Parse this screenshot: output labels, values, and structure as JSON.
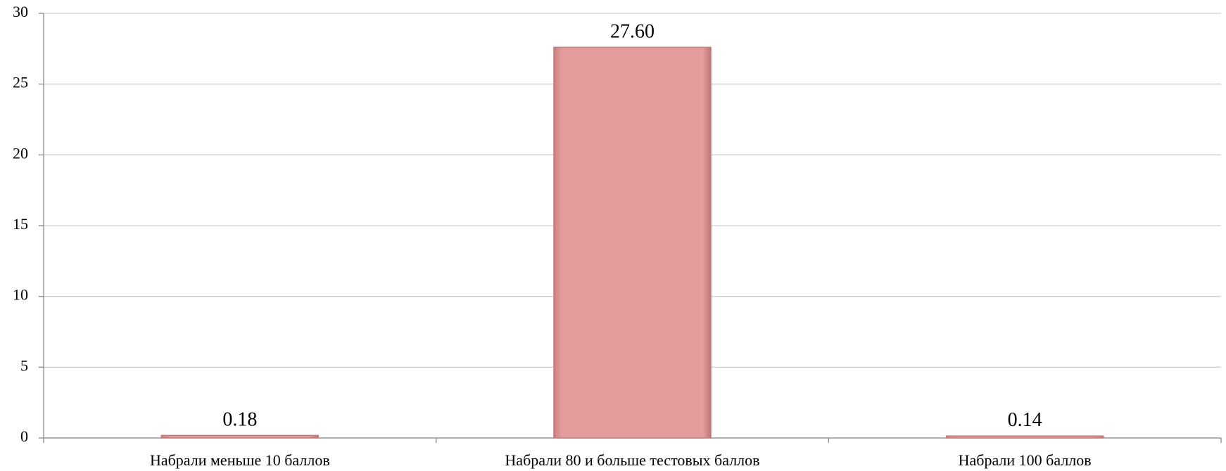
{
  "chart_data": {
    "type": "bar",
    "categories": [
      "Набрали меньше 10 баллов",
      "Набрали 80 и больше тестовых баллов",
      "Набрали 100 баллов"
    ],
    "values": [
      0.18,
      27.6,
      0.14
    ],
    "value_labels": [
      "0.18",
      "27.60",
      "0.14"
    ],
    "color": "#e59c9c",
    "ylim": [
      0,
      30
    ],
    "yticks": [
      0,
      5,
      10,
      15,
      20,
      25,
      30
    ],
    "grid": true
  }
}
